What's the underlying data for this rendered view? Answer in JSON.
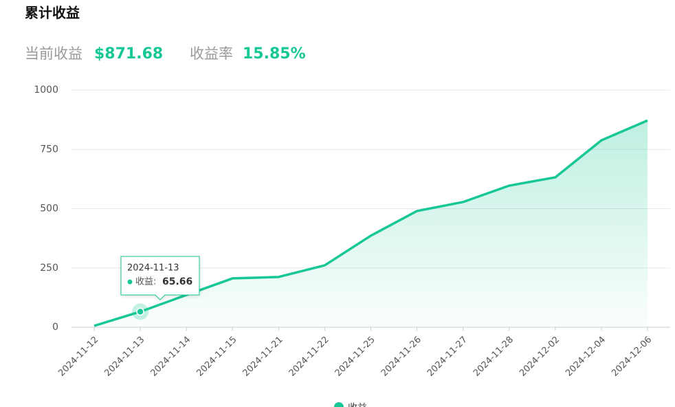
{
  "chart_data": {
    "type": "area",
    "title": "累计收益",
    "current_label": "当前收益",
    "current_value": "$871.68",
    "rate_label": "收益率",
    "rate_value": "15.85%",
    "categories": [
      "2024-11-12",
      "2024-11-13",
      "2024-11-14",
      "2024-11-15",
      "2024-11-21",
      "2024-11-22",
      "2024-11-25",
      "2024-11-26",
      "2024-11-27",
      "2024-11-28",
      "2024-12-02",
      "2024-12-04",
      "2024-12-06"
    ],
    "series": [
      {
        "name": "收益",
        "color": "#17c795",
        "values": [
          6,
          65.66,
          136,
          206,
          212,
          261,
          386,
          490,
          528,
          597,
          632,
          788,
          871.68
        ]
      }
    ],
    "ylim": [
      0,
      1000
    ],
    "yticks": [
      0,
      250,
      500,
      750,
      1000
    ],
    "grid": true,
    "tooltip": {
      "index": 1,
      "label": "收益:"
    }
  }
}
